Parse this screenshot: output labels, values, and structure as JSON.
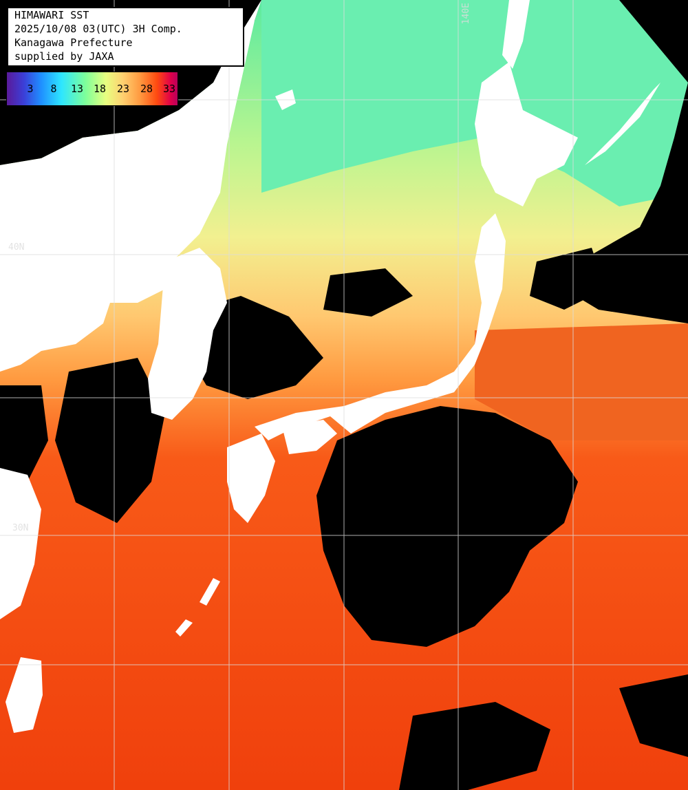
{
  "header": {
    "title": "HIMAWARI SST",
    "datetime": "2025/10/08 03(UTC) 3H Comp.",
    "region": "Kanagawa Prefecture",
    "credit": "supplied by JAXA"
  },
  "colorbar": {
    "ticks": [
      "3",
      "8",
      "13",
      "18",
      "23",
      "28",
      "33"
    ]
  },
  "grid": {
    "lon_label": "140E",
    "lat_label_1": "40N",
    "lat_label_2": "30N"
  },
  "colors": {
    "land": "#ffffff",
    "no_data": "#000000",
    "cold": "#5aeaa0",
    "cool": "#d8f58a",
    "mild": "#ffd070",
    "warm": "#ff8a3a",
    "hot": "#f03a0a",
    "grid_line": "#dddddd"
  }
}
